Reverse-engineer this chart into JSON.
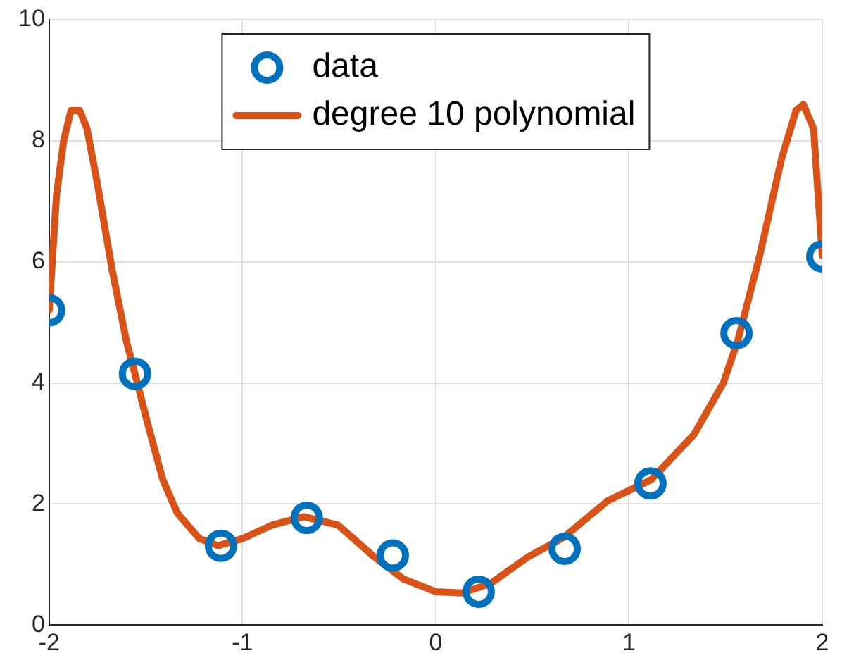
{
  "chart_data": {
    "type": "scatter",
    "xlim": [
      -2,
      2
    ],
    "xticks": [
      -2,
      -1,
      0,
      1,
      2
    ],
    "ylim": [
      0,
      10
    ],
    "yticks": [
      0,
      2,
      4,
      6,
      8,
      10
    ],
    "grid": true,
    "legend": "top",
    "series": [
      {
        "name": "data",
        "type": "scatter",
        "marker": "circle",
        "color": "#0072bd",
        "x": [
          -2,
          -1.556,
          -1.111,
          -0.667,
          -0.222,
          0.222,
          0.667,
          1.111,
          1.556,
          2
        ],
        "values": [
          5.2,
          4.15,
          1.31,
          1.77,
          1.15,
          0.55,
          1.26,
          2.34,
          4.82,
          6.09
        ]
      },
      {
        "name": "degree 10 polynomial",
        "type": "line",
        "marker": "none",
        "color": "#d95319",
        "x": [
          -2,
          -1.962,
          -1.925,
          -1.887,
          -1.842,
          -1.804,
          -1.751,
          -1.676,
          -1.601,
          -1.556,
          -1.488,
          -1.412,
          -1.337,
          -1.224,
          -1.126,
          -0.998,
          -0.847,
          -0.682,
          -0.505,
          -0.316,
          -0.167,
          0,
          0.136,
          0.286,
          0.475,
          0.663,
          0.889,
          1.115,
          1.337,
          1.488,
          1.563,
          1.676,
          1.789,
          1.864,
          1.902,
          1.955,
          2
        ],
        "values": [
          5.2,
          7.1,
          8.0,
          8.5,
          8.5,
          8.2,
          7.3,
          5.9,
          4.7,
          4.15,
          3.3,
          2.4,
          1.85,
          1.43,
          1.31,
          1.43,
          1.65,
          1.79,
          1.65,
          1.12,
          0.76,
          0.55,
          0.53,
          0.69,
          1.12,
          1.45,
          2.05,
          2.4,
          3.15,
          4.0,
          4.7,
          6.1,
          7.7,
          8.5,
          8.6,
          8.2,
          6.1
        ]
      }
    ]
  }
}
